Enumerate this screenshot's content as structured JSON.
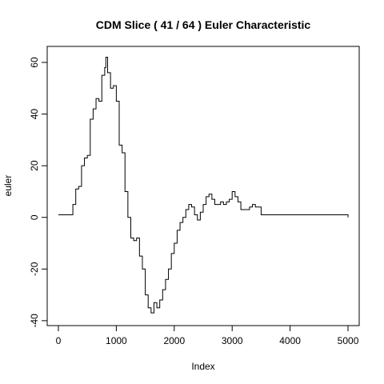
{
  "chart_data": {
    "type": "line",
    "step": true,
    "title": "CDM Slice ( 41 / 64 ) Euler Characteristic",
    "xlabel": "Index",
    "ylabel": "euler",
    "x": [
      0,
      180,
      250,
      300,
      350,
      400,
      450,
      500,
      550,
      600,
      650,
      700,
      750,
      800,
      820,
      850,
      900,
      950,
      1000,
      1050,
      1100,
      1150,
      1200,
      1250,
      1300,
      1350,
      1400,
      1450,
      1500,
      1550,
      1600,
      1650,
      1700,
      1750,
      1800,
      1850,
      1900,
      1950,
      2000,
      2050,
      2100,
      2150,
      2200,
      2250,
      2300,
      2350,
      2400,
      2450,
      2500,
      2550,
      2600,
      2650,
      2700,
      2750,
      2800,
      2850,
      2900,
      2950,
      3000,
      3050,
      3100,
      3150,
      3200,
      3300,
      3350,
      3400,
      3500,
      4000,
      4990,
      5000
    ],
    "values": [
      1,
      1,
      5,
      11,
      12,
      20,
      23,
      24,
      38,
      42,
      46,
      45,
      55,
      58,
      62,
      56,
      50,
      51,
      45,
      28,
      25,
      10,
      0,
      -8,
      -9,
      -8,
      -15,
      -20,
      -30,
      -35,
      -37,
      -33,
      -35,
      -32,
      -28,
      -24,
      -20,
      -14,
      -10,
      -5,
      -2,
      0,
      3,
      5,
      4,
      1,
      -1,
      2,
      5,
      8,
      9,
      7,
      5,
      5,
      6,
      5,
      6,
      7,
      10,
      8,
      6,
      3,
      3,
      4,
      5,
      4,
      1,
      1,
      1,
      0
    ],
    "color": "#000000",
    "xlim": [
      -193,
      5193
    ],
    "ylim": [
      -41.9,
      66.2
    ],
    "xticks": [
      0,
      1000,
      2000,
      3000,
      4000,
      5000
    ],
    "yticks": [
      -40,
      -20,
      0,
      20,
      40,
      60
    ]
  }
}
